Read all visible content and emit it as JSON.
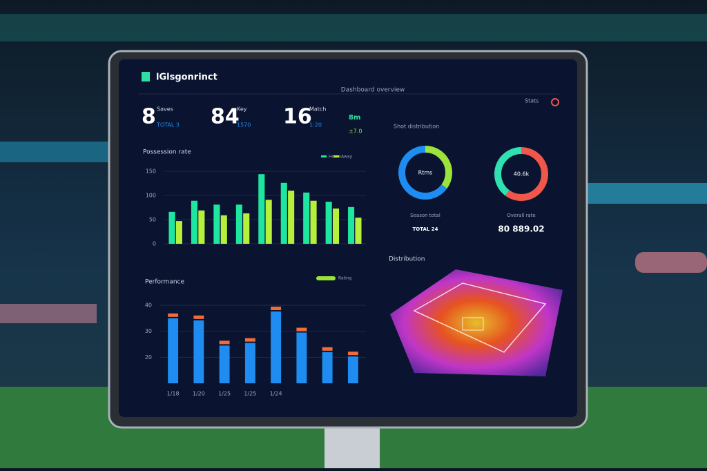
{
  "header": {
    "logo": "lGlsgonrinct",
    "center": "Dashboard overview",
    "right": "Stats"
  },
  "stats": [
    {
      "value": "8",
      "label": "Saves",
      "sub": "TOTAL 3"
    },
    {
      "value": "84",
      "label": "Key",
      "sub": "1570"
    },
    {
      "value": "16",
      "label": "Match",
      "sub": "1:20"
    },
    {
      "value": "8m",
      "label": "",
      "sub": "±7.0"
    }
  ],
  "sections": {
    "possession": "Possession rate",
    "donuts": "Shot distribution",
    "performance": "Performance",
    "heatmap": "Distribution"
  },
  "chart_data": [
    {
      "type": "bar",
      "series": [
        {
          "name": "Home",
          "color": "#1ee6a0",
          "values": [
            66,
            89,
            81,
            81,
            144,
            126,
            106,
            87,
            76
          ]
        },
        {
          "name": "Away",
          "color": "#b6f03c",
          "values": [
            47,
            69,
            59,
            63,
            91,
            110,
            89,
            73,
            54
          ]
        }
      ],
      "ylim": [
        0,
        150
      ],
      "yticks": [
        0,
        50,
        100,
        150
      ],
      "grid": true
    },
    {
      "type": "bar",
      "name": "Rating",
      "categories": [
        "1/18",
        "1/20",
        "1/25",
        "1/25",
        "1/24",
        null,
        null,
        null
      ],
      "values": [
        35,
        34.2,
        24.5,
        25.5,
        37.6,
        29.5,
        22,
        20.3
      ],
      "color": "#1e8cf0",
      "cap_color": "#f26b3a",
      "ylim": [
        10,
        40
      ],
      "yticks": [
        20,
        30,
        40
      ],
      "grid": true
    },
    {
      "type": "pie",
      "center_label": "Rtms",
      "caption": "Season total",
      "footer": "TOTAL 24",
      "values": [
        35,
        65
      ],
      "colors": [
        "#9be33a",
        "#1e8cf0"
      ]
    },
    {
      "type": "pie",
      "center_label": "40.6k",
      "caption": "Overall rate",
      "footer": "80 889.02",
      "values": [
        60,
        40
      ],
      "colors": [
        "#f0564a",
        "#2fe0b0"
      ]
    }
  ]
}
